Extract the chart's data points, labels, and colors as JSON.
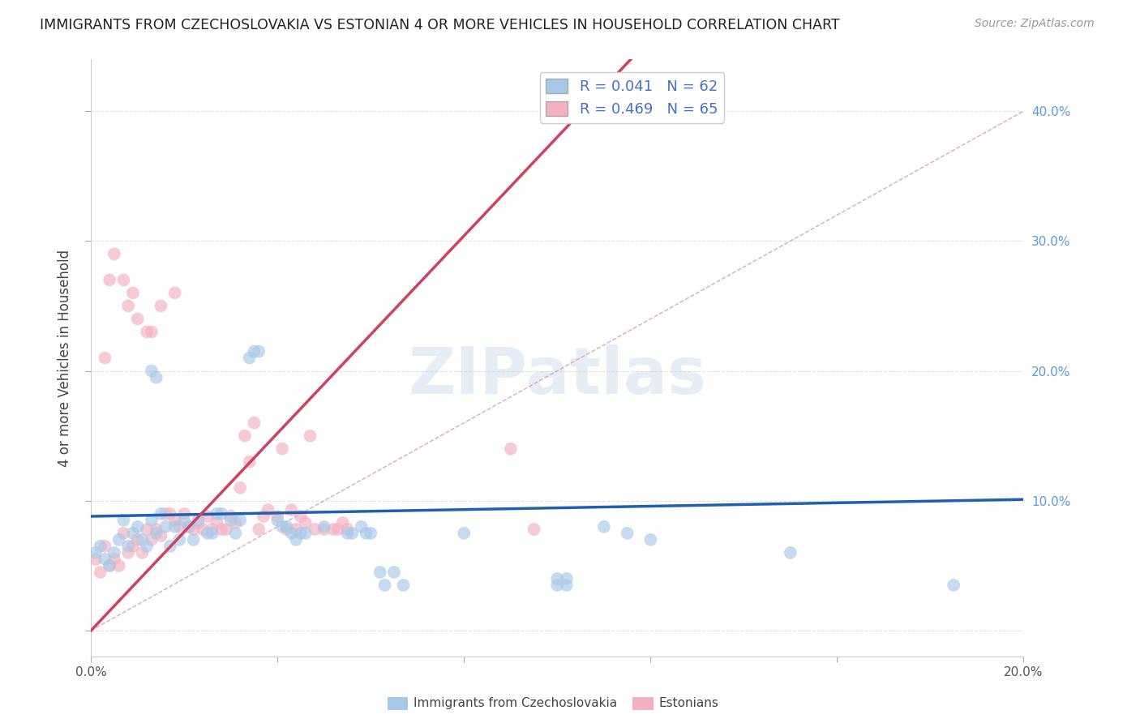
{
  "title": "IMMIGRANTS FROM CZECHOSLOVAKIA VS ESTONIAN 4 OR MORE VEHICLES IN HOUSEHOLD CORRELATION CHART",
  "source": "Source: ZipAtlas.com",
  "ylabel": "4 or more Vehicles in Household",
  "xlim": [
    0.0,
    0.2
  ],
  "ylim": [
    -0.02,
    0.44
  ],
  "ytick_vals": [
    0.0,
    0.1,
    0.2,
    0.3,
    0.4
  ],
  "xtick_vals": [
    0.0,
    0.04,
    0.08,
    0.12,
    0.16,
    0.2
  ],
  "xtick_labels": [
    "0.0%",
    "",
    "",
    "",
    "",
    "20.0%"
  ],
  "right_ytick_labels": [
    "10.0%",
    "20.0%",
    "30.0%",
    "40.0%"
  ],
  "right_ytick_vals": [
    0.1,
    0.2,
    0.3,
    0.4
  ],
  "legend_label_blue": "R = 0.041   N = 62",
  "legend_label_pink": "R = 0.469   N = 65",
  "blue_intercept": 0.088,
  "blue_slope": 0.065,
  "pink_intercept": 0.0,
  "pink_slope": 3.8,
  "dashed_intercept": 0.0,
  "dashed_slope": 2.0,
  "blue_scatter": [
    [
      0.001,
      0.06
    ],
    [
      0.002,
      0.065
    ],
    [
      0.003,
      0.055
    ],
    [
      0.004,
      0.05
    ],
    [
      0.005,
      0.06
    ],
    [
      0.006,
      0.07
    ],
    [
      0.007,
      0.085
    ],
    [
      0.008,
      0.065
    ],
    [
      0.009,
      0.075
    ],
    [
      0.01,
      0.08
    ],
    [
      0.011,
      0.07
    ],
    [
      0.012,
      0.065
    ],
    [
      0.013,
      0.085
    ],
    [
      0.014,
      0.075
    ],
    [
      0.015,
      0.09
    ],
    [
      0.016,
      0.08
    ],
    [
      0.017,
      0.065
    ],
    [
      0.018,
      0.08
    ],
    [
      0.019,
      0.07
    ],
    [
      0.02,
      0.085
    ],
    [
      0.021,
      0.08
    ],
    [
      0.022,
      0.07
    ],
    [
      0.023,
      0.085
    ],
    [
      0.025,
      0.075
    ],
    [
      0.026,
      0.075
    ],
    [
      0.027,
      0.09
    ],
    [
      0.028,
      0.09
    ],
    [
      0.03,
      0.085
    ],
    [
      0.031,
      0.075
    ],
    [
      0.032,
      0.085
    ],
    [
      0.034,
      0.21
    ],
    [
      0.035,
      0.215
    ],
    [
      0.036,
      0.215
    ],
    [
      0.013,
      0.2
    ],
    [
      0.014,
      0.195
    ],
    [
      0.04,
      0.085
    ],
    [
      0.041,
      0.08
    ],
    [
      0.042,
      0.08
    ],
    [
      0.043,
      0.075
    ],
    [
      0.044,
      0.07
    ],
    [
      0.045,
      0.075
    ],
    [
      0.046,
      0.075
    ],
    [
      0.05,
      0.08
    ],
    [
      0.055,
      0.075
    ],
    [
      0.056,
      0.075
    ],
    [
      0.058,
      0.08
    ],
    [
      0.059,
      0.075
    ],
    [
      0.06,
      0.075
    ],
    [
      0.062,
      0.045
    ],
    [
      0.063,
      0.035
    ],
    [
      0.065,
      0.045
    ],
    [
      0.067,
      0.035
    ],
    [
      0.08,
      0.075
    ],
    [
      0.1,
      0.035
    ],
    [
      0.102,
      0.035
    ],
    [
      0.11,
      0.08
    ],
    [
      0.115,
      0.075
    ],
    [
      0.12,
      0.07
    ],
    [
      0.15,
      0.06
    ],
    [
      0.185,
      0.035
    ],
    [
      0.1,
      0.04
    ],
    [
      0.102,
      0.04
    ]
  ],
  "pink_scatter": [
    [
      0.001,
      0.055
    ],
    [
      0.002,
      0.045
    ],
    [
      0.003,
      0.065
    ],
    [
      0.004,
      0.05
    ],
    [
      0.005,
      0.055
    ],
    [
      0.006,
      0.05
    ],
    [
      0.007,
      0.075
    ],
    [
      0.008,
      0.06
    ],
    [
      0.009,
      0.065
    ],
    [
      0.01,
      0.07
    ],
    [
      0.011,
      0.06
    ],
    [
      0.012,
      0.078
    ],
    [
      0.013,
      0.07
    ],
    [
      0.014,
      0.078
    ],
    [
      0.015,
      0.073
    ],
    [
      0.016,
      0.09
    ],
    [
      0.017,
      0.09
    ],
    [
      0.018,
      0.085
    ],
    [
      0.019,
      0.08
    ],
    [
      0.02,
      0.09
    ],
    [
      0.021,
      0.08
    ],
    [
      0.022,
      0.078
    ],
    [
      0.023,
      0.083
    ],
    [
      0.024,
      0.078
    ],
    [
      0.025,
      0.088
    ],
    [
      0.026,
      0.078
    ],
    [
      0.027,
      0.083
    ],
    [
      0.028,
      0.078
    ],
    [
      0.029,
      0.078
    ],
    [
      0.03,
      0.088
    ],
    [
      0.031,
      0.083
    ],
    [
      0.032,
      0.11
    ],
    [
      0.033,
      0.15
    ],
    [
      0.034,
      0.13
    ],
    [
      0.035,
      0.16
    ],
    [
      0.036,
      0.078
    ],
    [
      0.037,
      0.088
    ],
    [
      0.038,
      0.093
    ],
    [
      0.04,
      0.088
    ],
    [
      0.041,
      0.14
    ],
    [
      0.042,
      0.078
    ],
    [
      0.043,
      0.093
    ],
    [
      0.044,
      0.078
    ],
    [
      0.045,
      0.088
    ],
    [
      0.046,
      0.083
    ],
    [
      0.047,
      0.15
    ],
    [
      0.048,
      0.078
    ],
    [
      0.05,
      0.078
    ],
    [
      0.052,
      0.078
    ],
    [
      0.053,
      0.078
    ],
    [
      0.054,
      0.083
    ],
    [
      0.055,
      0.078
    ],
    [
      0.004,
      0.27
    ],
    [
      0.008,
      0.25
    ],
    [
      0.01,
      0.24
    ],
    [
      0.013,
      0.23
    ],
    [
      0.015,
      0.25
    ],
    [
      0.018,
      0.26
    ],
    [
      0.005,
      0.29
    ],
    [
      0.009,
      0.26
    ],
    [
      0.012,
      0.23
    ],
    [
      0.003,
      0.21
    ],
    [
      0.007,
      0.27
    ],
    [
      0.09,
      0.14
    ],
    [
      0.095,
      0.078
    ]
  ],
  "blue_color": "#a8c8e8",
  "pink_color": "#f4b0c0",
  "blue_line_color": "#2060b0",
  "pink_line_color": "#d04060",
  "dashed_line_color": "#d8a0b8",
  "watermark_text": "ZIPatlas",
  "background_color": "#ffffff",
  "grid_color": "#e0e0e0"
}
